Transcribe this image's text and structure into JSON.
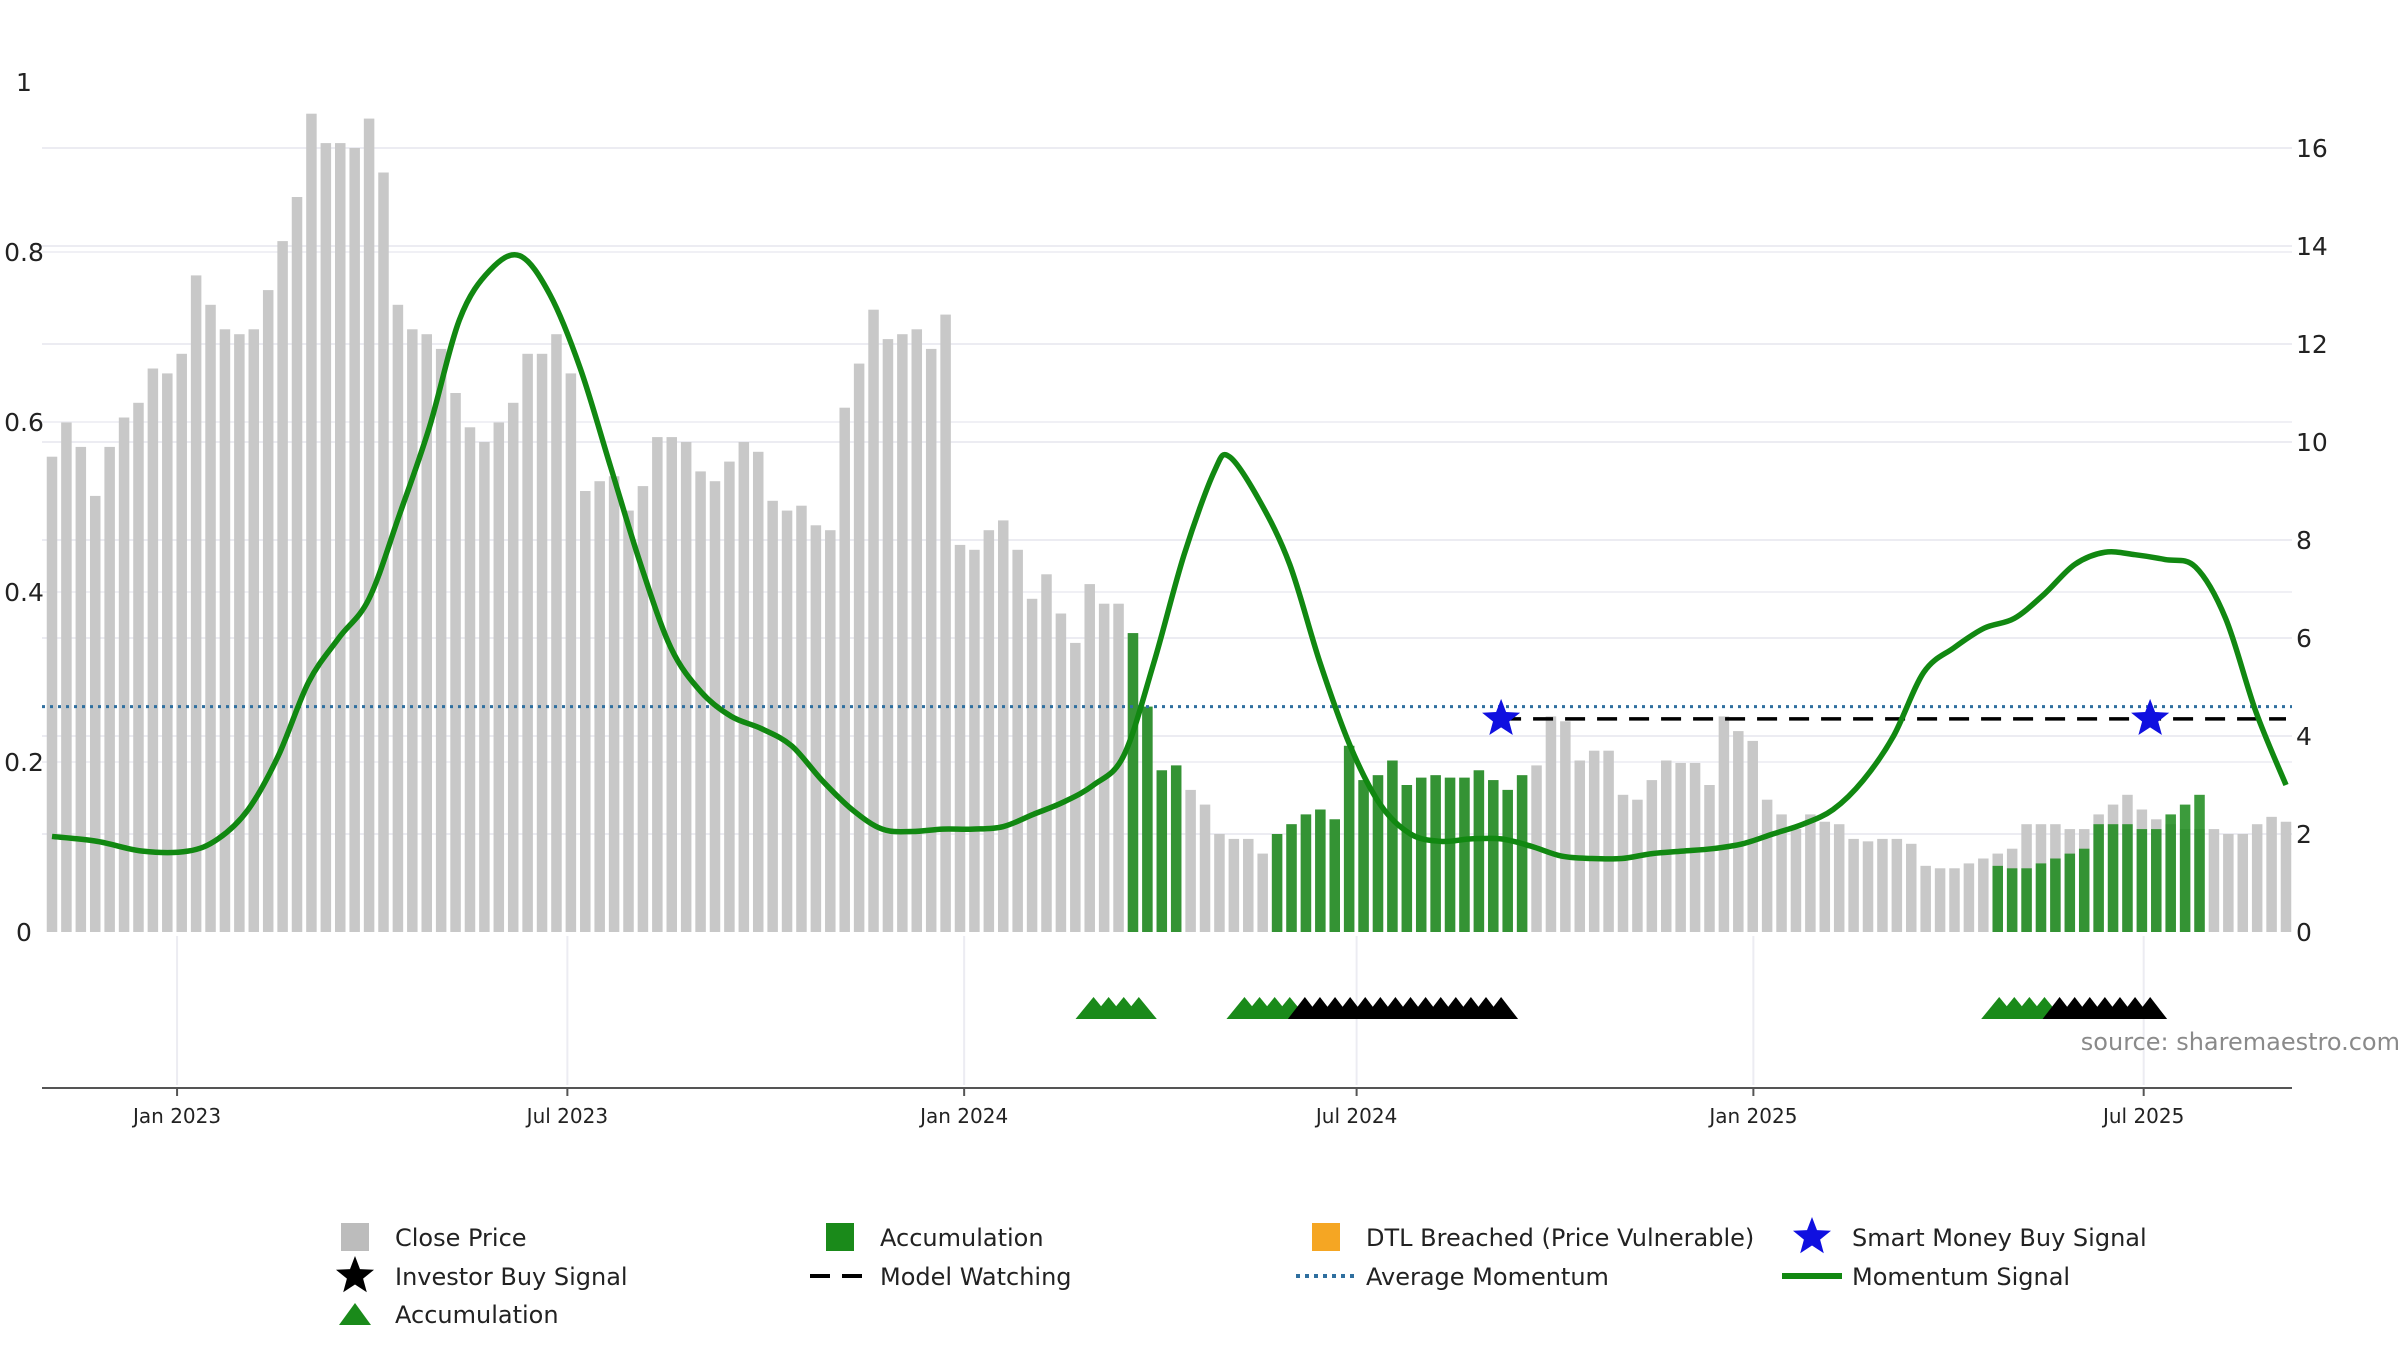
{
  "chart_data": {
    "type": "bar",
    "x_ticks": [
      "Jan 2023",
      "Jul 2023",
      "Jan 2024",
      "Jul 2024",
      "Jan 2025",
      "Jul 2025"
    ],
    "left_ticks": [
      "0",
      "0.2",
      "0.4",
      "0.6",
      "0.8",
      "1"
    ],
    "right_ticks": [
      "0",
      "2",
      "4",
      "6",
      "8",
      "10",
      "12",
      "14",
      "16"
    ],
    "left_ylim": [
      0,
      1
    ],
    "right_ylim": [
      0,
      17
    ],
    "grid": true,
    "legend_position": "bottom",
    "source": "source: sharemaestro.com",
    "start_date": "2022-11-04",
    "series": [
      {
        "name": "Close Price",
        "type": "bar",
        "color": "#c8c8c8",
        "values": [
          9.7,
          10.4,
          9.9,
          8.9,
          9.9,
          10.5,
          10.8,
          11.5,
          11.4,
          11.8,
          13.4,
          12.8,
          12.3,
          12.2,
          12.3,
          13.1,
          14.1,
          15.0,
          16.7,
          16.1,
          16.1,
          16.0,
          16.6,
          15.5,
          12.8,
          12.3,
          12.2,
          11.9,
          11.0,
          10.3,
          10.0,
          10.4,
          10.8,
          11.8,
          11.8,
          12.2,
          11.4,
          9.0,
          9.2,
          9.3,
          8.6,
          9.1,
          10.1,
          10.1,
          10.0,
          9.4,
          9.2,
          9.6,
          10.0,
          9.8,
          8.8,
          8.6,
          8.7,
          8.3,
          8.2,
          10.7,
          11.6,
          12.7,
          12.1,
          12.2,
          12.3,
          11.9,
          12.6,
          7.9,
          7.8,
          8.2,
          8.4,
          7.8,
          6.8,
          7.3,
          6.5,
          5.9,
          7.1,
          6.7,
          6.7,
          6.1,
          4.6,
          3.3,
          3.4,
          2.9,
          2.6,
          2.0,
          1.9,
          1.9,
          1.6,
          2.0,
          2.2,
          2.4,
          2.5,
          2.3,
          3.8,
          3.1,
          3.2,
          3.5,
          3.0,
          3.15,
          3.2,
          3.15,
          3.15,
          3.3,
          3.1,
          2.9,
          3.2,
          3.4,
          4.4,
          4.3,
          3.5,
          3.7,
          3.7,
          2.8,
          2.7,
          3.1,
          3.5,
          3.45,
          3.45,
          3.0,
          4.4,
          4.1,
          3.9,
          2.7,
          2.4,
          2.1,
          2.4,
          2.25,
          2.2,
          1.9,
          1.85,
          1.9,
          1.9,
          1.8,
          1.35,
          1.3,
          1.3,
          1.4,
          1.5,
          1.6,
          1.7,
          2.2,
          2.2,
          2.2,
          2.1,
          2.1,
          2.4,
          2.6,
          2.8,
          2.5,
          2.3,
          2.2,
          2.1,
          2.1,
          2.1,
          2.0,
          2.0,
          2.2,
          2.35,
          2.25
        ]
      },
      {
        "name": "Accumulation",
        "type": "bar",
        "color": "#1a8a1a",
        "values": [
          null,
          null,
          null,
          null,
          null,
          null,
          null,
          null,
          null,
          null,
          null,
          null,
          null,
          null,
          null,
          null,
          null,
          null,
          null,
          null,
          null,
          null,
          null,
          null,
          null,
          null,
          null,
          null,
          null,
          null,
          null,
          null,
          null,
          null,
          null,
          null,
          null,
          null,
          null,
          null,
          null,
          null,
          null,
          null,
          null,
          null,
          null,
          null,
          null,
          null,
          null,
          null,
          null,
          null,
          null,
          null,
          null,
          null,
          null,
          null,
          null,
          null,
          null,
          null,
          null,
          null,
          null,
          null,
          null,
          null,
          null,
          null,
          null,
          null,
          null,
          6.1,
          4.6,
          3.3,
          3.4,
          null,
          null,
          null,
          null,
          null,
          null,
          2.0,
          2.2,
          2.4,
          2.5,
          2.3,
          3.8,
          3.1,
          3.2,
          3.5,
          3.0,
          3.15,
          3.2,
          3.15,
          3.15,
          3.3,
          3.1,
          2.9,
          3.2,
          null,
          null,
          null,
          null,
          null,
          null,
          null,
          null,
          null,
          null,
          null,
          null,
          null,
          null,
          null,
          null,
          null,
          null,
          null,
          null,
          null,
          null,
          null,
          null,
          null,
          null,
          null,
          null,
          null,
          null,
          null,
          null,
          1.35,
          1.3,
          1.3,
          1.4,
          1.5,
          1.6,
          1.7,
          2.2,
          2.2,
          2.2,
          2.1,
          2.1,
          2.4,
          2.6,
          2.8,
          null,
          null,
          null,
          null,
          null,
          null,
          null,
          null,
          null,
          null,
          null
        ]
      },
      {
        "name": "DTL Breached (Price Vulnerable)",
        "type": "bar",
        "color": "#f5a623",
        "values": []
      },
      {
        "name": "Smart Money Buy Signal",
        "type": "marker",
        "color": "#1010e0",
        "points": [
          {
            "date": "2024-09-06",
            "y": 4.35
          },
          {
            "date": "2025-07-04",
            "y": 4.35
          }
        ]
      },
      {
        "name": "Investor Buy Signal",
        "type": "marker",
        "color": "#000000",
        "dates": [
          "2024-06-07",
          "2024-06-14",
          "2024-06-21",
          "2024-06-28",
          "2024-07-05",
          "2024-07-12",
          "2024-07-19",
          "2024-07-26",
          "2024-08-02",
          "2024-08-09",
          "2024-08-16",
          "2024-08-23",
          "2024-08-30",
          "2024-09-06",
          "2025-05-23",
          "2025-05-30",
          "2025-06-06",
          "2025-06-13",
          "2025-06-20",
          "2025-06-27",
          "2025-07-04"
        ]
      },
      {
        "name": "Model Watching",
        "type": "line",
        "color": "#000000",
        "segments": [
          {
            "from": "2024-09-06",
            "to": "2025-09-05",
            "y": 4.35
          }
        ]
      },
      {
        "name": "Accumulation",
        "type": "marker",
        "color": "#1a8a1a",
        "dates": [
          "2024-03-01",
          "2024-03-08",
          "2024-03-15",
          "2024-03-22",
          "2024-05-10",
          "2024-05-17",
          "2024-05-24",
          "2024-05-31",
          "2025-04-25",
          "2025-05-02",
          "2025-05-09",
          "2025-05-16"
        ]
      },
      {
        "name": "Average Momentum",
        "type": "line",
        "color": "#2f6f9f",
        "y": 4.6
      },
      {
        "name": "Momentum Signal",
        "type": "line",
        "color": "#118811",
        "points": [
          [
            "2022-11-04",
            1.95
          ],
          [
            "2022-11-25",
            1.85
          ],
          [
            "2022-12-16",
            1.65
          ],
          [
            "2023-01-06",
            1.65
          ],
          [
            "2023-01-20",
            1.9
          ],
          [
            "2023-02-03",
            2.5
          ],
          [
            "2023-02-17",
            3.6
          ],
          [
            "2023-03-03",
            5.1
          ],
          [
            "2023-03-17",
            6.0
          ],
          [
            "2023-03-31",
            6.8
          ],
          [
            "2023-04-14",
            8.5
          ],
          [
            "2023-04-28",
            10.3
          ],
          [
            "2023-05-12",
            12.5
          ],
          [
            "2023-05-26",
            13.5
          ],
          [
            "2023-06-09",
            13.8
          ],
          [
            "2023-06-23",
            13.0
          ],
          [
            "2023-07-07",
            11.5
          ],
          [
            "2023-07-21",
            9.5
          ],
          [
            "2023-08-04",
            7.5
          ],
          [
            "2023-08-18",
            5.8
          ],
          [
            "2023-09-01",
            4.9
          ],
          [
            "2023-09-15",
            4.4
          ],
          [
            "2023-09-29",
            4.15
          ],
          [
            "2023-10-13",
            3.8
          ],
          [
            "2023-10-27",
            3.1
          ],
          [
            "2023-11-10",
            2.5
          ],
          [
            "2023-11-24",
            2.1
          ],
          [
            "2023-12-08",
            2.05
          ],
          [
            "2023-12-22",
            2.1
          ],
          [
            "2024-01-05",
            2.1
          ],
          [
            "2024-01-19",
            2.15
          ],
          [
            "2024-02-02",
            2.4
          ],
          [
            "2024-02-16",
            2.65
          ],
          [
            "2024-03-01",
            3.0
          ],
          [
            "2024-03-15",
            3.6
          ],
          [
            "2024-03-29",
            5.5
          ],
          [
            "2024-04-12",
            7.7
          ],
          [
            "2024-04-26",
            9.4
          ],
          [
            "2024-05-03",
            9.7
          ],
          [
            "2024-05-17",
            8.8
          ],
          [
            "2024-05-31",
            7.5
          ],
          [
            "2024-06-14",
            5.5
          ],
          [
            "2024-06-28",
            3.8
          ],
          [
            "2024-07-12",
            2.6
          ],
          [
            "2024-07-26",
            2.0
          ],
          [
            "2024-08-09",
            1.85
          ],
          [
            "2024-08-23",
            1.9
          ],
          [
            "2024-09-06",
            1.9
          ],
          [
            "2024-09-20",
            1.75
          ],
          [
            "2024-10-04",
            1.55
          ],
          [
            "2024-10-18",
            1.5
          ],
          [
            "2024-11-01",
            1.5
          ],
          [
            "2024-11-15",
            1.6
          ],
          [
            "2024-11-29",
            1.65
          ],
          [
            "2024-12-13",
            1.7
          ],
          [
            "2024-12-27",
            1.8
          ],
          [
            "2025-01-10",
            2.0
          ],
          [
            "2025-01-24",
            2.2
          ],
          [
            "2025-02-07",
            2.5
          ],
          [
            "2025-02-21",
            3.1
          ],
          [
            "2025-03-07",
            4.0
          ],
          [
            "2025-03-21",
            5.3
          ],
          [
            "2025-04-04",
            5.8
          ],
          [
            "2025-04-18",
            6.2
          ],
          [
            "2025-05-02",
            6.4
          ],
          [
            "2025-05-16",
            6.9
          ],
          [
            "2025-05-30",
            7.5
          ],
          [
            "2025-06-13",
            7.75
          ],
          [
            "2025-06-27",
            7.7
          ],
          [
            "2025-07-11",
            7.6
          ],
          [
            "2025-07-25",
            7.45
          ],
          [
            "2025-08-08",
            6.4
          ],
          [
            "2025-08-22",
            4.5
          ],
          [
            "2025-09-05",
            3.0
          ]
        ]
      }
    ],
    "legend": [
      {
        "label": "Close Price",
        "symbol": "square",
        "color": "#bcbcbc"
      },
      {
        "label": "Accumulation",
        "symbol": "square",
        "color": "#1a8a1a"
      },
      {
        "label": "DTL Breached (Price Vulnerable)",
        "symbol": "square",
        "color": "#f5a623"
      },
      {
        "label": "Smart Money Buy Signal",
        "symbol": "star",
        "color": "#1010e0"
      },
      {
        "label": "Investor Buy Signal",
        "symbol": "star",
        "color": "#000000"
      },
      {
        "label": "Model Watching",
        "symbol": "dash",
        "color": "#000000"
      },
      {
        "label": "Average Momentum",
        "symbol": "dot",
        "color": "#2f6f9f"
      },
      {
        "label": "Momentum Signal",
        "symbol": "line",
        "color": "#118811"
      },
      {
        "label": "Accumulation",
        "symbol": "triangle",
        "color": "#1a8a1a"
      }
    ]
  }
}
